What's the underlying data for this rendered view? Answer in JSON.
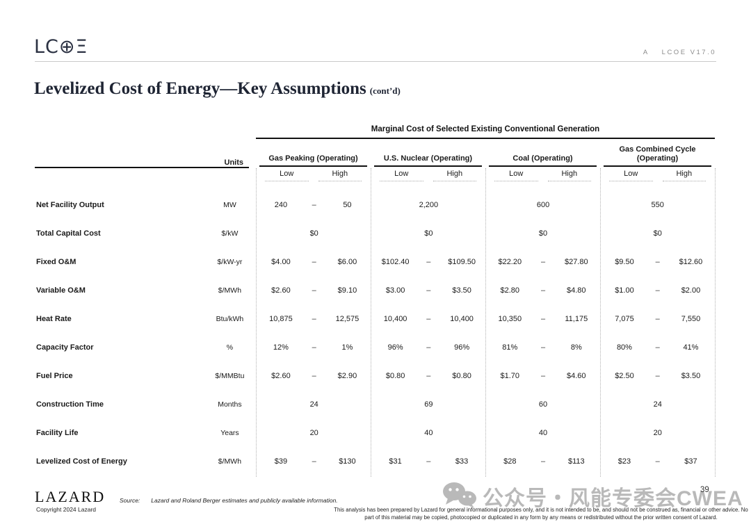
{
  "header": {
    "logo": "LC⊕Ξ",
    "doc_ref_prefix": "A",
    "doc_ref": "LCOE V17.0"
  },
  "title": {
    "main": "Levelized Cost of Energy—Key Assumptions",
    "suffix": "(cont’d)"
  },
  "table": {
    "banner": "Marginal Cost of Selected Existing Conventional Generation",
    "units_header": "Units",
    "range_separator": "–",
    "groups": [
      "Gas Peaking (Operating)",
      "U.S. Nuclear (Operating)",
      "Coal (Operating)",
      "Gas Combined Cycle (Operating)"
    ],
    "subheaders": [
      "Low",
      "High"
    ],
    "rows": [
      {
        "label": "Net Facility Output",
        "units": "MW",
        "cells": [
          [
            "240",
            "50"
          ],
          [
            "2,200"
          ],
          [
            "600"
          ],
          [
            "550"
          ]
        ]
      },
      {
        "label": "Total Capital Cost",
        "units": "$/kW",
        "cells": [
          [
            "$0"
          ],
          [
            "$0"
          ],
          [
            "$0"
          ],
          [
            "$0"
          ]
        ]
      },
      {
        "label": "Fixed O&M",
        "units": "$/kW-yr",
        "cells": [
          [
            "$4.00",
            "$6.00"
          ],
          [
            "$102.40",
            "$109.50"
          ],
          [
            "$22.20",
            "$27.80"
          ],
          [
            "$9.50",
            "$12.60"
          ]
        ]
      },
      {
        "label": "Variable O&M",
        "units": "$/MWh",
        "cells": [
          [
            "$2.60",
            "$9.10"
          ],
          [
            "$3.00",
            "$3.50"
          ],
          [
            "$2.80",
            "$4.80"
          ],
          [
            "$1.00",
            "$2.00"
          ]
        ]
      },
      {
        "label": "Heat Rate",
        "units": "Btu/kWh",
        "cells": [
          [
            "10,875",
            "12,575"
          ],
          [
            "10,400",
            "10,400"
          ],
          [
            "10,350",
            "11,175"
          ],
          [
            "7,075",
            "7,550"
          ]
        ]
      },
      {
        "label": "Capacity Factor",
        "units": "%",
        "cells": [
          [
            "12%",
            "1%"
          ],
          [
            "96%",
            "96%"
          ],
          [
            "81%",
            "8%"
          ],
          [
            "80%",
            "41%"
          ]
        ]
      },
      {
        "label": "Fuel Price",
        "units": "$/MMBtu",
        "cells": [
          [
            "$2.60",
            "$2.90"
          ],
          [
            "$0.80",
            "$0.80"
          ],
          [
            "$1.70",
            "$4.60"
          ],
          [
            "$2.50",
            "$3.50"
          ]
        ]
      },
      {
        "label": "Construction Time",
        "units": "Months",
        "cells": [
          [
            "24"
          ],
          [
            "69"
          ],
          [
            "60"
          ],
          [
            "24"
          ]
        ]
      },
      {
        "label": "Facility Life",
        "units": "Years",
        "cells": [
          [
            "20"
          ],
          [
            "40"
          ],
          [
            "40"
          ],
          [
            "20"
          ]
        ]
      },
      {
        "label": "Levelized Cost of Energy",
        "units": "$/MWh",
        "cells": [
          [
            "$39",
            "$130"
          ],
          [
            "$31",
            "$33"
          ],
          [
            "$28",
            "$113"
          ],
          [
            "$23",
            "$37"
          ]
        ]
      }
    ]
  },
  "footer": {
    "brand": "LAZARD",
    "copyright": "Copyright 2024 Lazard",
    "source_label": "Source:",
    "source_text": "Lazard and Roland Berger estimates and publicly available information.",
    "disclaimer": "This analysis has been prepared by Lazard for general informational purposes only, and it is not intended to be, and should not be construed as, financial or other advice. No part of this material may be copied, photocopied or duplicated in any form by any means or redistributed without the prior written consent of Lazard.",
    "page_number": "39"
  },
  "watermark": {
    "icon": "wechat-icon",
    "text": "公众号・风能专委会CWEA"
  },
  "colors": {
    "title_navy": "#1e2433",
    "rule_gray": "#c9c9c9",
    "watermark_gray": "#b9b9b9",
    "line_black": "#111111",
    "dotted_gray": "#b0b0b0"
  }
}
